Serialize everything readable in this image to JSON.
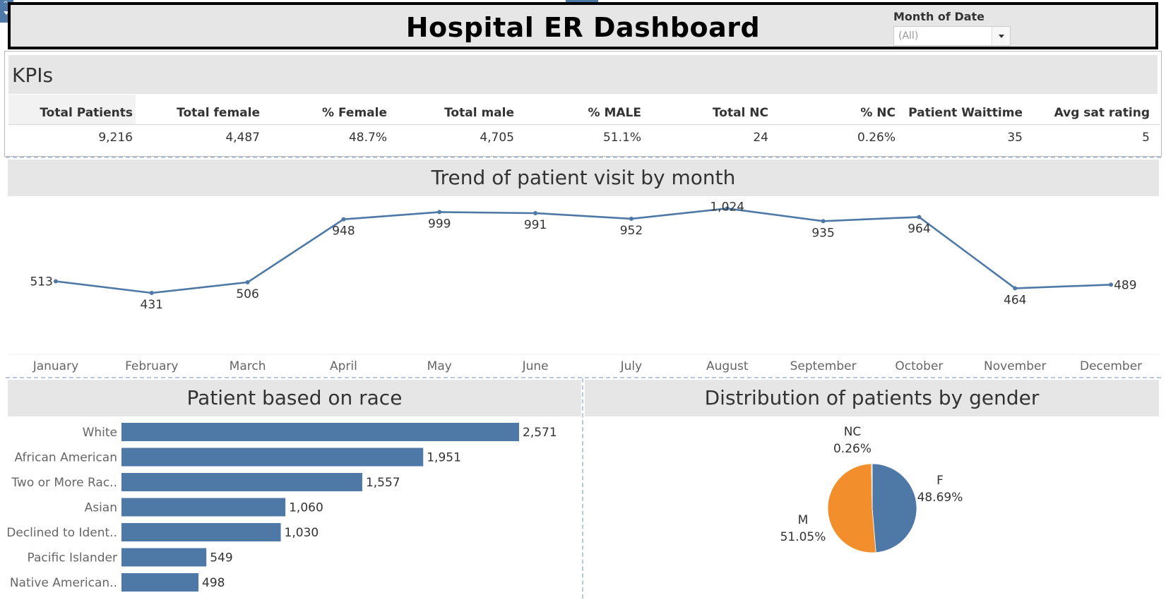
{
  "header": {
    "title": "Hospital ER Dashboard",
    "filter_label": "Month of Date",
    "filter_value": "(All)"
  },
  "kpis": {
    "section_title": "KPIs",
    "columns": [
      {
        "label": "Total Patients",
        "value": "9,216"
      },
      {
        "label": "Total female",
        "value": "4,487"
      },
      {
        "label": "% Female",
        "value": "48.7%"
      },
      {
        "label": "Total male",
        "value": "4,705"
      },
      {
        "label": "% MALE",
        "value": "51.1%"
      },
      {
        "label": "Total NC",
        "value": "24"
      },
      {
        "label": "% NC",
        "value": "0.26%"
      },
      {
        "label": "Patient Waittime",
        "value": "35"
      },
      {
        "label": "Avg sat rating",
        "value": "5"
      }
    ]
  },
  "colors": {
    "primary": "#4e79a7",
    "secondary": "#f28e2b",
    "panel_bg": "#e6e6e6"
  },
  "chart_data": [
    {
      "type": "line",
      "title": "Trend of patient visit by month",
      "categories": [
        "January",
        "February",
        "March",
        "April",
        "May",
        "June",
        "July",
        "August",
        "September",
        "October",
        "November",
        "December"
      ],
      "values": [
        513,
        431,
        506,
        948,
        999,
        991,
        952,
        1024,
        935,
        964,
        464,
        489
      ],
      "labels": [
        "513",
        "431",
        "506",
        "948",
        "999",
        "991",
        "952",
        "1,024",
        "935",
        "964",
        "464",
        "489"
      ],
      "ylim": [
        0,
        1100
      ],
      "color": "#4e79a7"
    },
    {
      "type": "bar",
      "orientation": "horizontal",
      "title": "Patient based on race",
      "categories": [
        "White",
        "African American",
        "Two or More Rac..",
        "Asian",
        "Declined to Ident..",
        "Pacific Islander",
        "Native American.."
      ],
      "values": [
        2571,
        1951,
        1557,
        1060,
        1030,
        549,
        498
      ],
      "labels": [
        "2,571",
        "1,951",
        "1,557",
        "1,060",
        "1,030",
        "549",
        "498"
      ],
      "color": "#4e79a7"
    },
    {
      "type": "pie",
      "title": "Distribution of patients by gender",
      "slices": [
        {
          "name": "F",
          "value": 48.69,
          "label": "48.69%",
          "color": "#4e79a7"
        },
        {
          "name": "M",
          "value": 51.05,
          "label": "51.05%",
          "color": "#f28e2b"
        },
        {
          "name": "NC",
          "value": 0.26,
          "label": "0.26%",
          "color": "#4e79a7"
        }
      ]
    }
  ]
}
